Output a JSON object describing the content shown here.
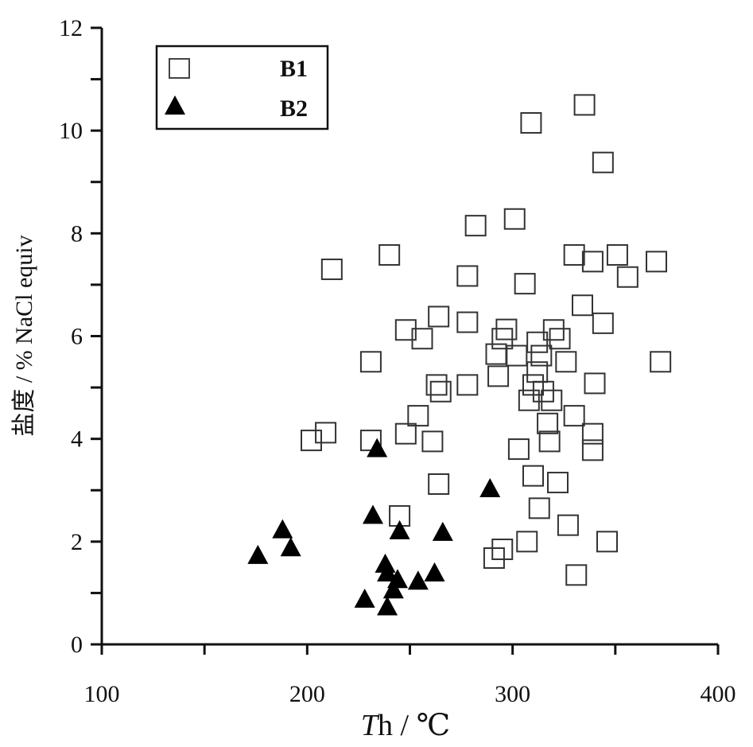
{
  "chart_data": {
    "type": "scatter",
    "title": "",
    "xlabel": {
      "italic": "T",
      "rest": "h / ℃"
    },
    "ylabel": "盐度 / % NaCl equiv",
    "xlim": [
      100,
      400
    ],
    "ylim": [
      0,
      12
    ],
    "x_ticks": [
      "100",
      "200",
      "300",
      "400"
    ],
    "y_ticks": [
      "0",
      "2",
      "4",
      "6",
      "8",
      "10",
      "12"
    ],
    "legend": {
      "placement": "top-left"
    },
    "series": [
      {
        "name": "B1",
        "marker": "open-square",
        "color": "#333333",
        "points": [
          [
            335,
            10.5
          ],
          [
            309,
            10.15
          ],
          [
            344,
            9.38
          ],
          [
            301,
            8.28
          ],
          [
            282,
            8.15
          ],
          [
            240,
            7.58
          ],
          [
            330,
            7.58
          ],
          [
            351,
            7.58
          ],
          [
            339,
            7.45
          ],
          [
            370,
            7.45
          ],
          [
            212,
            7.3
          ],
          [
            278,
            7.17
          ],
          [
            356,
            7.15
          ],
          [
            306,
            7.02
          ],
          [
            334,
            6.6
          ],
          [
            264,
            6.38
          ],
          [
            278,
            6.27
          ],
          [
            344,
            6.25
          ],
          [
            248,
            6.12
          ],
          [
            297,
            6.13
          ],
          [
            320,
            6.12
          ],
          [
            256,
            5.95
          ],
          [
            295,
            5.95
          ],
          [
            323,
            5.95
          ],
          [
            312,
            5.88
          ],
          [
            292,
            5.65
          ],
          [
            302,
            5.62
          ],
          [
            314,
            5.62
          ],
          [
            231,
            5.5
          ],
          [
            326,
            5.5
          ],
          [
            372,
            5.5
          ],
          [
            312,
            5.3
          ],
          [
            293,
            5.22
          ],
          [
            278,
            5.05
          ],
          [
            263,
            5.05
          ],
          [
            310,
            5.05
          ],
          [
            340,
            5.08
          ],
          [
            315,
            4.92
          ],
          [
            265,
            4.92
          ],
          [
            308,
            4.75
          ],
          [
            319,
            4.75
          ],
          [
            254,
            4.45
          ],
          [
            330,
            4.45
          ],
          [
            317,
            4.3
          ],
          [
            209,
            4.12
          ],
          [
            248,
            4.1
          ],
          [
            202,
            3.97
          ],
          [
            231,
            3.97
          ],
          [
            261,
            3.95
          ],
          [
            318,
            3.95
          ],
          [
            339,
            4.1
          ],
          [
            339,
            3.78
          ],
          [
            303,
            3.8
          ],
          [
            310,
            3.28
          ],
          [
            264,
            3.12
          ],
          [
            322,
            3.15
          ],
          [
            313,
            2.65
          ],
          [
            245,
            2.5
          ],
          [
            327,
            2.32
          ],
          [
            307,
            2.0
          ],
          [
            346,
            2.0
          ],
          [
            295,
            1.85
          ],
          [
            291,
            1.68
          ],
          [
            331,
            1.35
          ]
        ]
      },
      {
        "name": "B2",
        "marker": "filled-triangle",
        "color": "#000000",
        "points": [
          [
            234,
            3.8
          ],
          [
            289,
            3.02
          ],
          [
            232,
            2.5
          ],
          [
            188,
            2.22
          ],
          [
            245,
            2.2
          ],
          [
            266,
            2.17
          ],
          [
            192,
            1.87
          ],
          [
            176,
            1.72
          ],
          [
            238,
            1.55
          ],
          [
            239,
            1.38
          ],
          [
            262,
            1.38
          ],
          [
            244,
            1.25
          ],
          [
            254,
            1.22
          ],
          [
            242,
            1.05
          ],
          [
            228,
            0.87
          ],
          [
            239,
            0.72
          ]
        ]
      }
    ]
  }
}
